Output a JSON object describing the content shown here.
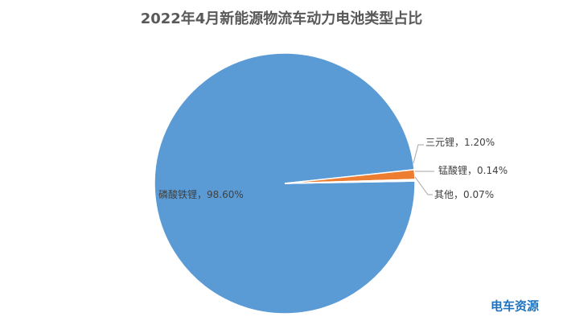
{
  "chart_data": {
    "type": "pie",
    "title": "2022年4月新能源物流车动力电池类型占比",
    "categories": [
      "磷酸铁锂",
      "三元锂",
      "锰酸锂",
      "其他"
    ],
    "values": [
      98.6,
      1.2,
      0.14,
      0.07
    ],
    "value_labels": [
      "98.60%",
      "1.20%",
      "0.14%",
      "0.07%"
    ],
    "label_separator": "，",
    "colors": [
      "#5b9bd5",
      "#ed7d31",
      "#a5a5a5",
      "#ffc000"
    ],
    "watermark": "电车资源"
  }
}
